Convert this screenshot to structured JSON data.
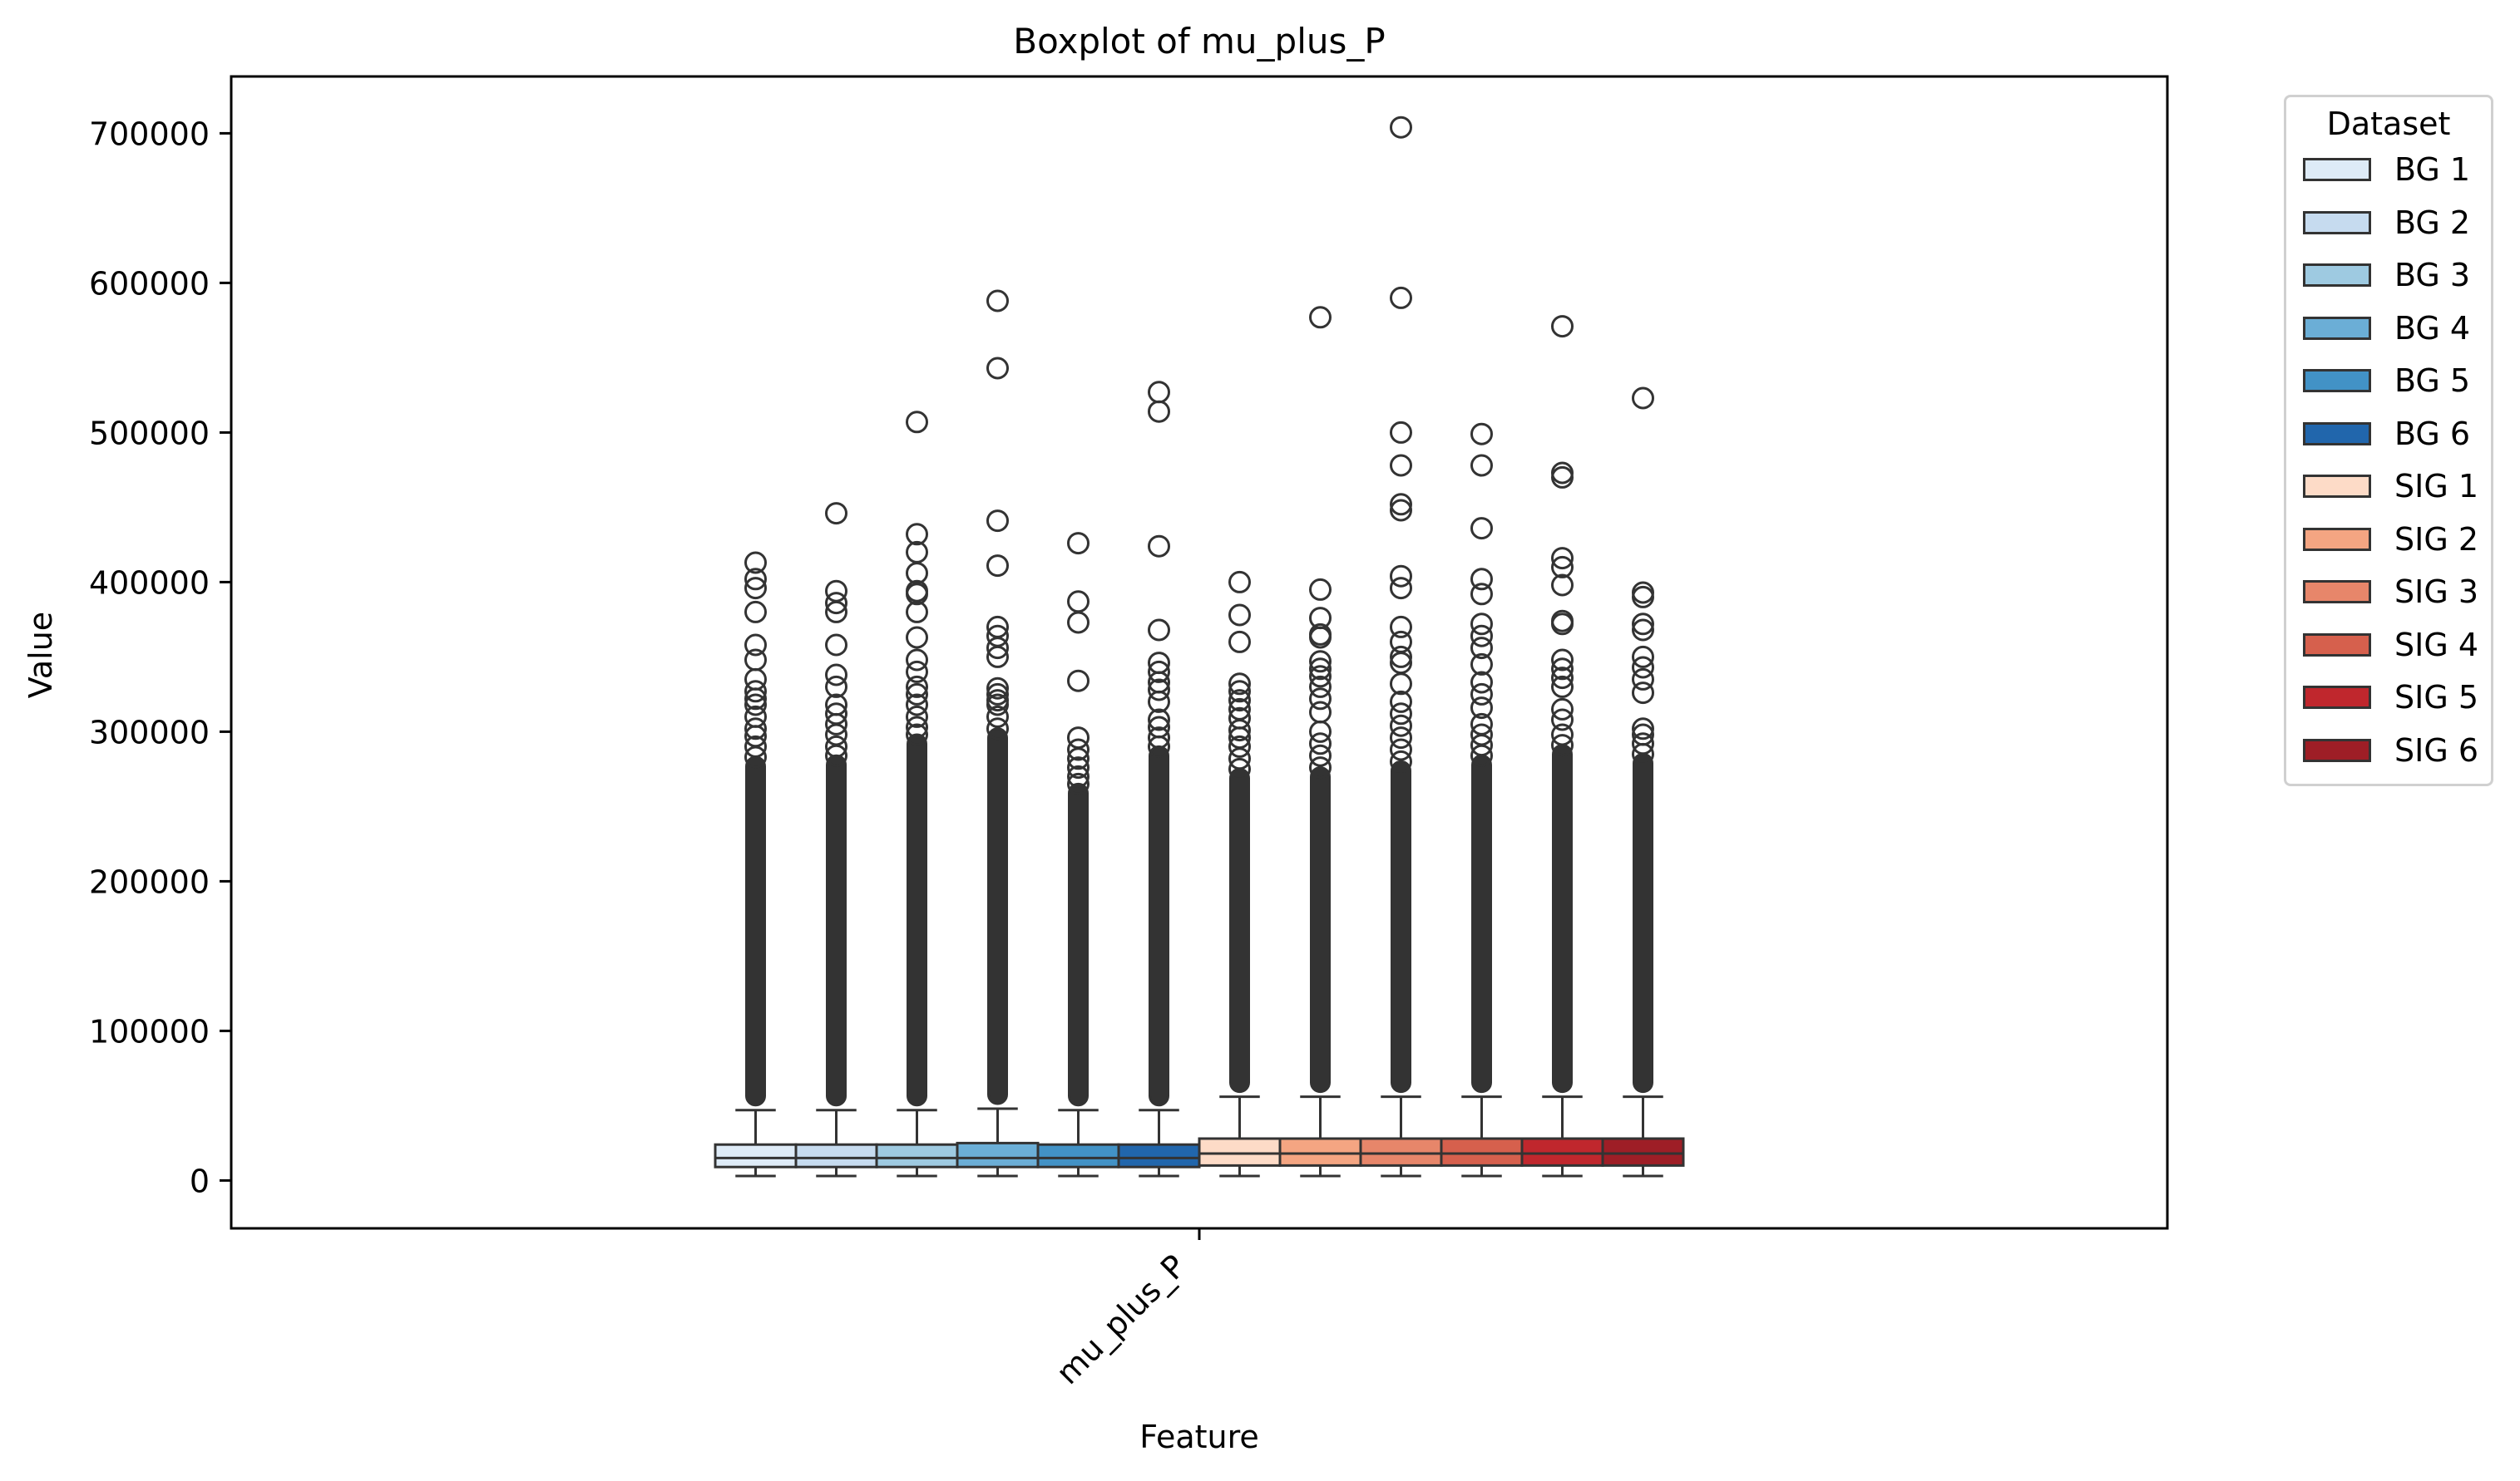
{
  "chart_data": {
    "type": "boxplot",
    "title": "Boxplot of mu_plus_P",
    "xlabel": "Feature",
    "ylabel": "Value",
    "categories": [
      "mu_plus_P"
    ],
    "ylim": [
      -32000,
      738000
    ],
    "yticks": [
      0,
      100000,
      200000,
      300000,
      400000,
      500000,
      600000,
      700000
    ],
    "grid": false,
    "legend": {
      "title": "Dataset",
      "placement": "outside-right"
    },
    "series": [
      {
        "name": "BG 1",
        "color": "#deebf7",
        "min": 3000,
        "q1": 9000,
        "median": 15000,
        "q3": 24000,
        "whisker_high": 47000,
        "outlier_max": 413000,
        "outliers": [
          413000,
          402000,
          396000,
          380000,
          358000,
          348000,
          335000,
          327000,
          322000,
          318000,
          310000,
          302000,
          297000,
          290000,
          283000
        ]
      },
      {
        "name": "BG 2",
        "color": "#c6dbef",
        "min": 3000,
        "q1": 9000,
        "median": 15000,
        "q3": 24000,
        "whisker_high": 47000,
        "outlier_max": 446000,
        "outliers": [
          446000,
          394000,
          386000,
          380000,
          358000,
          338000,
          330000,
          318000,
          312000,
          305000,
          298000,
          290000,
          284000
        ]
      },
      {
        "name": "BG 3",
        "color": "#9ecae1",
        "min": 3000,
        "q1": 9000,
        "median": 15000,
        "q3": 24000,
        "whisker_high": 47000,
        "outlier_max": 507000,
        "outliers": [
          507000,
          432000,
          420000,
          406000,
          394000,
          392000,
          380000,
          363000,
          348000,
          340000,
          330000,
          325000,
          318000,
          310000,
          303000,
          298000
        ]
      },
      {
        "name": "BG 4",
        "color": "#6baed6",
        "min": 3000,
        "q1": 9000,
        "median": 15000,
        "q3": 25000,
        "whisker_high": 48000,
        "outlier_max": 588000,
        "outliers": [
          588000,
          543000,
          441000,
          411000,
          370000,
          364000,
          356000,
          350000,
          329000,
          325000,
          321000,
          318000,
          310000,
          302000
        ]
      },
      {
        "name": "BG 5",
        "color": "#4292c6",
        "min": 3000,
        "q1": 9000,
        "median": 15000,
        "q3": 24000,
        "whisker_high": 47000,
        "outlier_max": 426000,
        "outliers": [
          426000,
          387000,
          373000,
          334000,
          296000,
          288000,
          282000,
          276000,
          270000,
          265000
        ]
      },
      {
        "name": "BG 6",
        "color": "#2166ac",
        "min": 3000,
        "q1": 9000,
        "median": 15000,
        "q3": 24000,
        "whisker_high": 47000,
        "outlier_max": 527000,
        "outliers": [
          527000,
          514000,
          424000,
          368000,
          346000,
          340000,
          333000,
          328000,
          320000,
          308000,
          303000,
          296000,
          290000
        ]
      },
      {
        "name": "SIG 1",
        "color": "#fddbc7",
        "min": 3000,
        "q1": 10000,
        "median": 18000,
        "q3": 28000,
        "whisker_high": 56000,
        "outlier_max": 400000,
        "outliers": [
          400000,
          378000,
          360000,
          332000,
          327000,
          321000,
          315000,
          309000,
          301000,
          296000,
          290000,
          282000,
          275000
        ]
      },
      {
        "name": "SIG 2",
        "color": "#f4a582",
        "min": 3000,
        "q1": 10000,
        "median": 18000,
        "q3": 28000,
        "whisker_high": 56000,
        "outlier_max": 577000,
        "outliers": [
          577000,
          395000,
          376000,
          365000,
          363000,
          347000,
          342000,
          337000,
          330000,
          322000,
          313000,
          300000,
          292000,
          284000,
          276000
        ]
      },
      {
        "name": "SIG 3",
        "color": "#e7866a",
        "min": 3000,
        "q1": 10000,
        "median": 18000,
        "q3": 28000,
        "whisker_high": 56000,
        "outlier_max": 704000,
        "outliers": [
          704000,
          590000,
          500000,
          478000,
          452000,
          448000,
          404000,
          396000,
          370000,
          360000,
          350000,
          346000,
          332000,
          320000,
          312000,
          304000,
          296000,
          288000,
          280000
        ]
      },
      {
        "name": "SIG 4",
        "color": "#d6604d",
        "min": 3000,
        "q1": 10000,
        "median": 18000,
        "q3": 28000,
        "whisker_high": 56000,
        "outlier_max": 499000,
        "outliers": [
          499000,
          478000,
          436000,
          402000,
          392000,
          372000,
          364000,
          356000,
          345000,
          333000,
          325000,
          316000,
          305000,
          298000,
          291000,
          284000
        ]
      },
      {
        "name": "SIG 5",
        "color": "#c0272d",
        "min": 3000,
        "q1": 10000,
        "median": 18000,
        "q3": 28000,
        "whisker_high": 56000,
        "outlier_max": 571000,
        "outliers": [
          571000,
          473000,
          470000,
          416000,
          410000,
          398000,
          374000,
          372000,
          348000,
          342000,
          336000,
          330000,
          315000,
          308000,
          298000,
          291000
        ]
      },
      {
        "name": "SIG 6",
        "color": "#9e1e26",
        "min": 3000,
        "q1": 10000,
        "median": 18000,
        "q3": 28000,
        "whisker_high": 56000,
        "outlier_max": 523000,
        "outliers": [
          523000,
          393000,
          390000,
          372000,
          368000,
          350000,
          343000,
          335000,
          326000,
          302000,
          298000,
          292000,
          285000
        ]
      }
    ]
  }
}
